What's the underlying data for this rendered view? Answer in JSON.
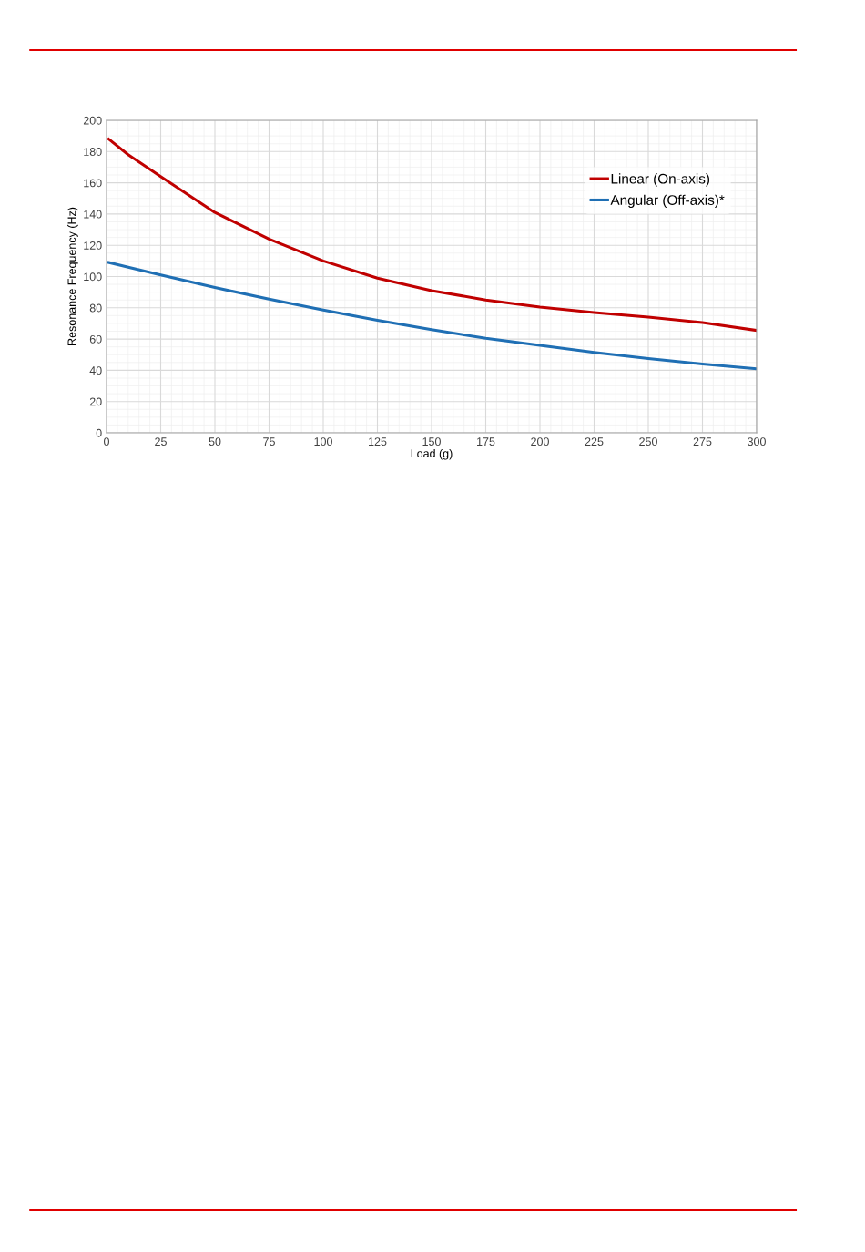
{
  "chart_data": {
    "type": "line",
    "xlabel": "Load (g)",
    "ylabel": "Resonance Frequency (Hz)",
    "x": [
      1,
      10,
      25,
      50,
      75,
      100,
      125,
      150,
      175,
      200,
      225,
      250,
      275,
      300
    ],
    "series": [
      {
        "name": "Linear (On-axis)",
        "color": "#c00000",
        "values": [
          188,
          178,
          164,
          141,
          124,
          110,
          99,
          91,
          85,
          80.5,
          77,
          74,
          70.5,
          65.5
        ]
      },
      {
        "name": "Angular (Off-axis)*",
        "color": "#1f6fb4",
        "values": [
          109,
          106,
          101,
          93,
          85.5,
          78.5,
          72,
          66,
          60.5,
          56,
          51.5,
          47.5,
          44,
          41
        ]
      }
    ],
    "xlim": [
      0,
      300
    ],
    "xticks": [
      0,
      25,
      50,
      75,
      100,
      125,
      150,
      175,
      200,
      225,
      250,
      275,
      300
    ],
    "ylim": [
      0,
      200
    ],
    "yticks": [
      0,
      20,
      40,
      60,
      80,
      100,
      120,
      140,
      160,
      180,
      200
    ],
    "grid": true,
    "legend": "top right",
    "marker": "none",
    "line_style": "solid"
  }
}
